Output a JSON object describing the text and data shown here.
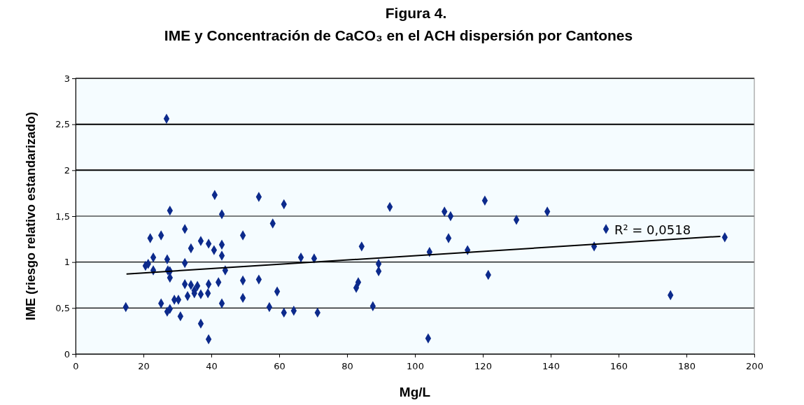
{
  "chart_data": {
    "type": "scatter",
    "title": "Figura 4.",
    "subtitle": "IME y Concentración de CaCO₃ en el ACH dispersión por Cantones",
    "xlabel": "Mg/L",
    "ylabel": "IME (riesgo relativo estandarizado)",
    "xlim": [
      0,
      200
    ],
    "xticks": [
      0,
      20,
      40,
      60,
      80,
      100,
      120,
      140,
      160,
      180,
      200
    ],
    "ylim": [
      0,
      3
    ],
    "yticks": [
      0,
      {
        "value": 0.5,
        "label": "0,5"
      },
      1,
      {
        "value": 1.5,
        "label": "1,5"
      },
      2,
      {
        "value": 2.5,
        "label": "2,5"
      },
      3
    ],
    "grid": "y",
    "marker": "diamond",
    "annotations": [
      "R² = 0,0518"
    ],
    "series": [
      {
        "color": "#0c2a8c",
        "x": [
          26.8,
          41,
          27.8,
          43.1,
          32.2,
          22,
          25.2,
          36.9,
          34,
          39.2,
          43.1,
          40.8,
          43.1,
          22.9,
          27,
          32.2,
          21.4,
          20.6,
          22.9,
          27.2,
          27.8,
          44.1,
          27.8,
          32.2,
          34,
          35.9,
          35,
          39.2,
          42.1,
          33,
          35,
          36.9,
          39,
          29.1,
          30.3,
          25.2,
          43.1,
          14.8,
          27.8,
          27,
          30.9,
          36.9,
          39.2,
          54,
          61.4,
          58.1,
          49.3,
          92.6,
          108.7,
          110.5,
          109.9,
          84.3,
          104.3,
          66.4,
          70.3,
          89.3,
          89.3,
          49.3,
          54,
          59.4,
          83.3,
          82.7,
          49.3,
          57.1,
          61.4,
          64.3,
          71.3,
          87.6,
          103.9,
          120.6,
          139,
          129.9,
          156.3,
          115.5,
          152.8,
          191.3,
          121.6,
          175.3
        ],
        "values": [
          2.56,
          1.73,
          1.56,
          1.52,
          1.36,
          1.26,
          1.29,
          1.23,
          1.15,
          1.2,
          1.19,
          1.13,
          1.07,
          1.05,
          1.03,
          0.99,
          0.98,
          0.96,
          0.91,
          0.91,
          0.9,
          0.91,
          0.83,
          0.76,
          0.75,
          0.74,
          0.69,
          0.76,
          0.78,
          0.63,
          0.66,
          0.65,
          0.66,
          0.59,
          0.59,
          0.55,
          0.55,
          0.51,
          0.49,
          0.46,
          0.41,
          0.33,
          0.16,
          1.71,
          1.63,
          1.42,
          1.29,
          1.6,
          1.55,
          1.5,
          1.26,
          1.17,
          1.11,
          1.05,
          1.04,
          0.98,
          0.9,
          0.8,
          0.81,
          0.68,
          0.78,
          0.72,
          0.61,
          0.51,
          0.45,
          0.47,
          0.45,
          0.52,
          0.17,
          1.67,
          1.55,
          1.46,
          1.36,
          1.13,
          1.17,
          1.27,
          0.86,
          0.64
        ]
      },
      {
        "type": "line",
        "color": "#000000",
        "marker": "none",
        "x": [
          15,
          190
        ],
        "values": [
          0.87,
          1.28
        ]
      }
    ]
  }
}
